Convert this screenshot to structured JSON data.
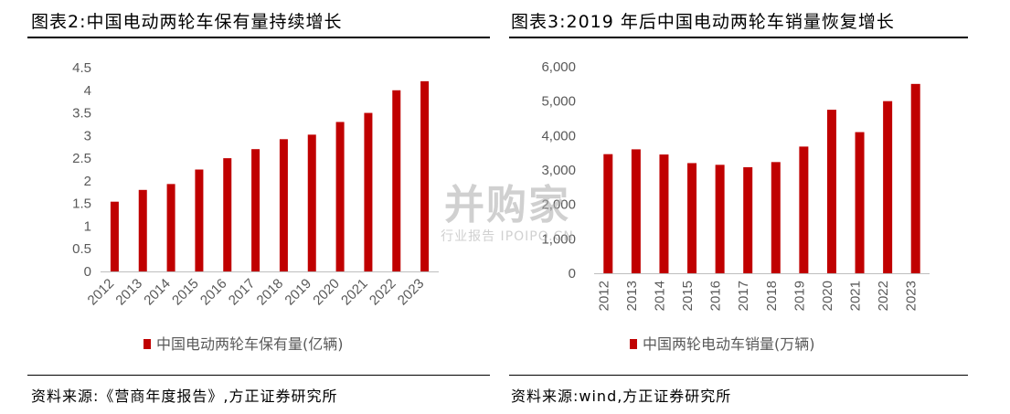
{
  "left_panel": {
    "title": "图表2:中国电动两轮车保有量持续增长",
    "source": "资料来源:《营商年度报告》,方正证券研究所"
  },
  "right_panel": {
    "title": "图表3:2019 年后中国电动两轮车销量恢复增长",
    "source": "资料来源:wind,方正证券研究所"
  },
  "watermark": {
    "main": "并购家",
    "sub": "行业报告 IPOIPO.CN"
  },
  "colors": {
    "bar": "#C00000",
    "axis": "#BFBFBF",
    "tick_text": "#595959"
  },
  "chart_data": [
    {
      "type": "bar",
      "categories": [
        "2012",
        "2013",
        "2014",
        "2015",
        "2016",
        "2017",
        "2018",
        "2019",
        "2020",
        "2021",
        "2022",
        "2023"
      ],
      "series": [
        {
          "name": "中国电动两轮车保有量(亿辆)",
          "values": [
            1.54,
            1.8,
            1.93,
            2.25,
            2.5,
            2.7,
            2.92,
            3.02,
            3.3,
            3.5,
            4.0,
            4.2
          ]
        }
      ],
      "y_ticks": [
        "0",
        "0.5",
        "1",
        "1.5",
        "2",
        "2.5",
        "3",
        "3.5",
        "4",
        "4.5"
      ],
      "ylim": [
        0,
        4.5
      ],
      "legend_position": "bottom",
      "grid": false
    },
    {
      "type": "bar",
      "categories": [
        "2012",
        "2013",
        "2014",
        "2015",
        "2016",
        "2017",
        "2018",
        "2019",
        "2020",
        "2021",
        "2022",
        "2023"
      ],
      "series": [
        {
          "name": "中国两轮电动车销量(万辆)",
          "values": [
            3460,
            3600,
            3450,
            3200,
            3150,
            3080,
            3230,
            3680,
            4750,
            4100,
            5000,
            5500
          ]
        }
      ],
      "y_ticks": [
        "0",
        "1,000",
        "2,000",
        "3,000",
        "4,000",
        "5,000",
        "6,000"
      ],
      "ylim": [
        0,
        6000
      ],
      "legend_position": "bottom",
      "grid": false
    }
  ]
}
